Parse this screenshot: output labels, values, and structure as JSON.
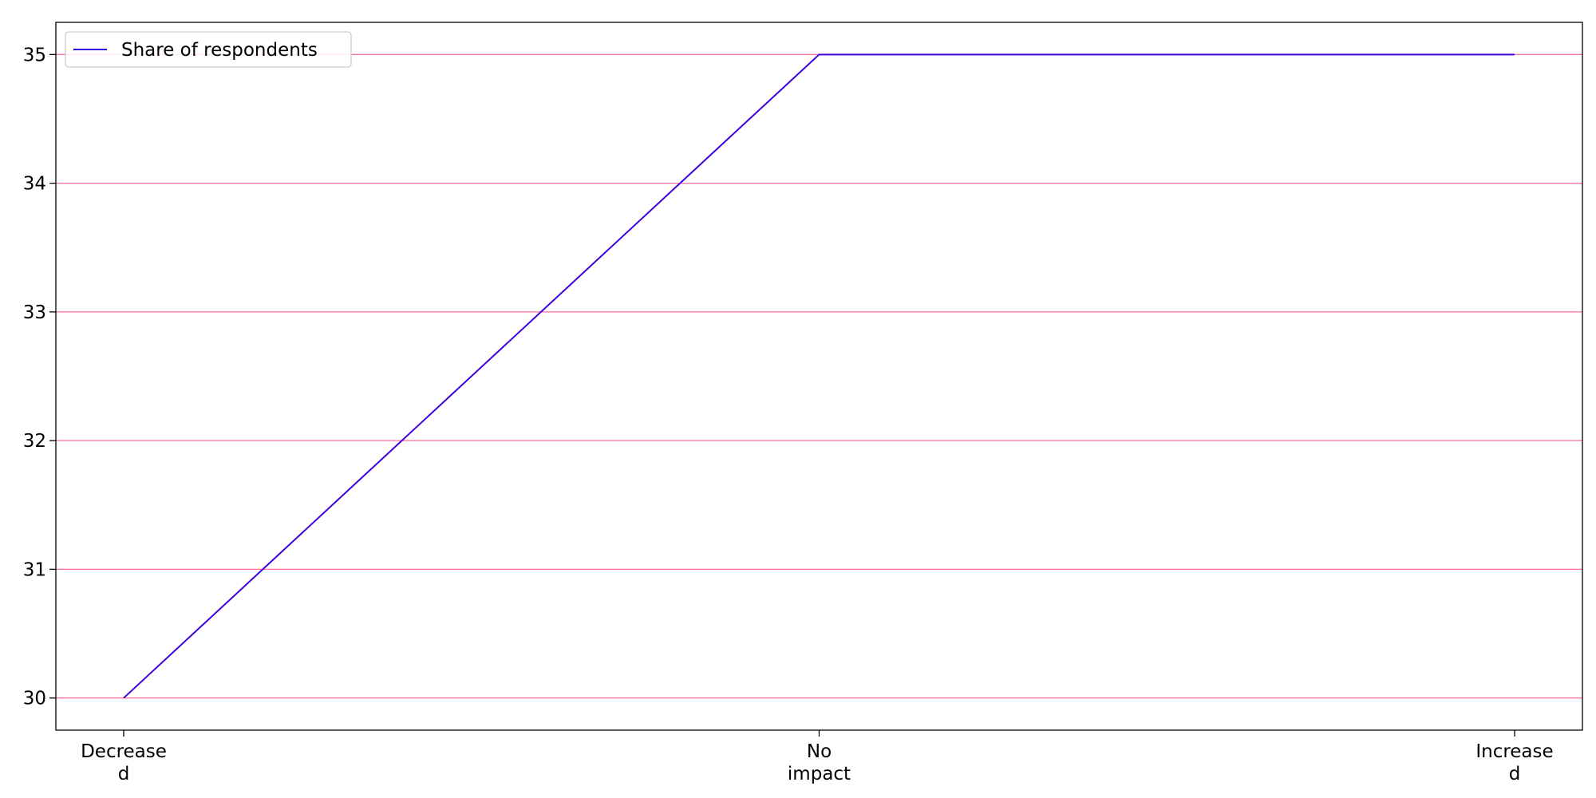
{
  "chart_data": {
    "type": "line",
    "categories": [
      "Decrease\nd",
      "No\nimpact",
      "Increase\nd"
    ],
    "series": [
      {
        "name": "Share of respondents",
        "values": [
          30,
          35,
          35
        ],
        "color": "#3f00e0"
      }
    ],
    "ylim": [
      29.75,
      35.25
    ],
    "yticks": [
      30,
      31,
      32,
      33,
      34,
      35
    ],
    "title": "",
    "xlabel": "",
    "ylabel": "",
    "grid": {
      "axis": "y",
      "color": "#ff6f9c"
    },
    "legend": {
      "position": "top-left"
    }
  }
}
